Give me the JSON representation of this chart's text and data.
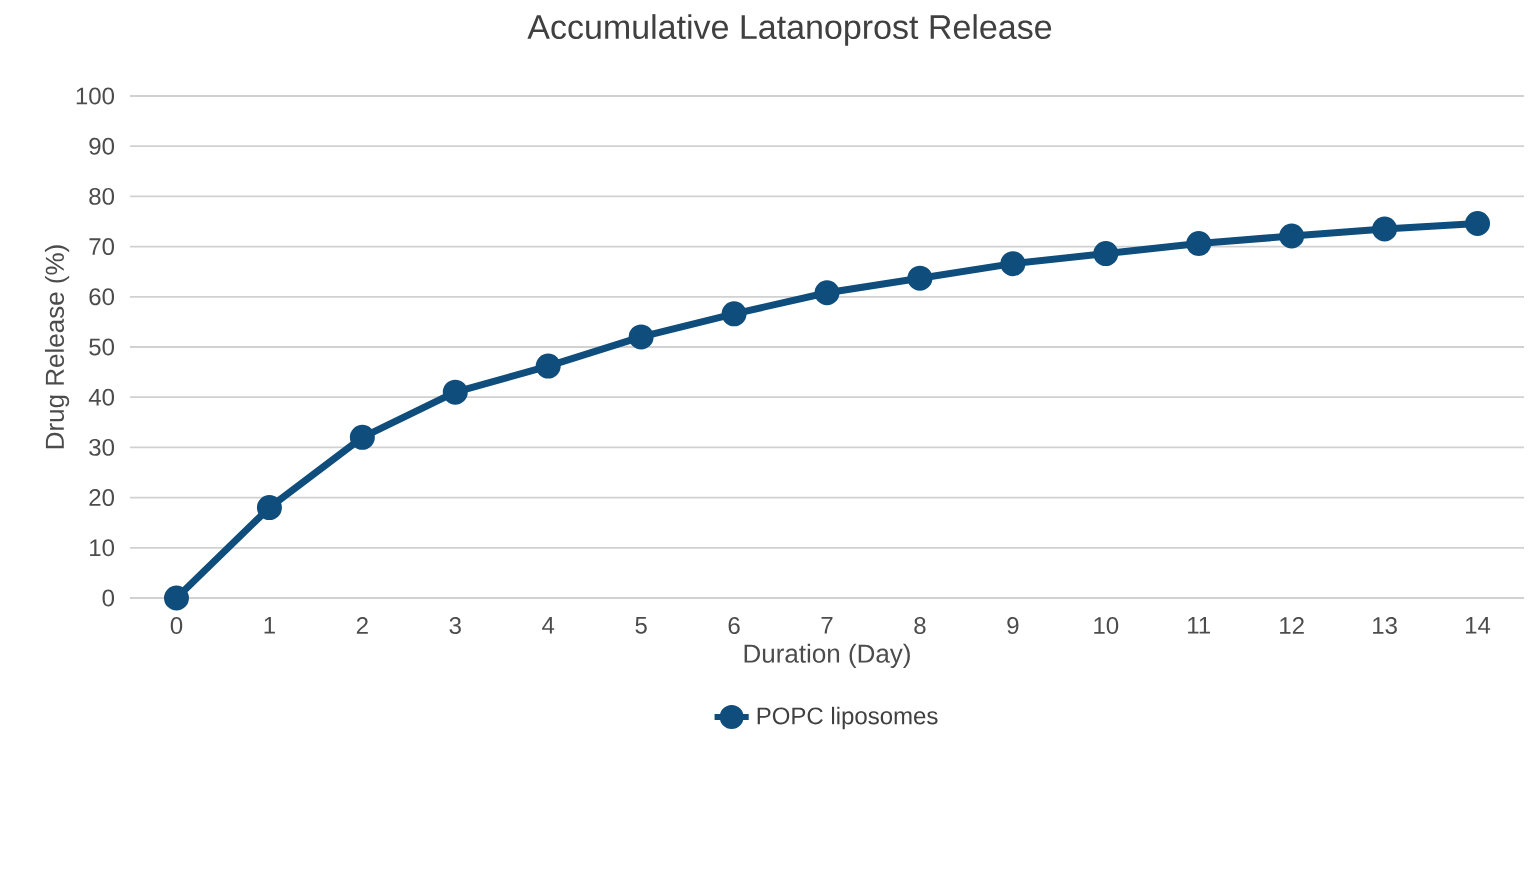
{
  "chart_data": {
    "type": "line",
    "title": "Accumulative Latanoprost Release",
    "xlabel": "Duration (Day)",
    "ylabel": "Drug Release (%)",
    "categories": [
      "0",
      "1",
      "2",
      "3",
      "4",
      "5",
      "6",
      "7",
      "8",
      "9",
      "10",
      "11",
      "12",
      "13",
      "14"
    ],
    "series": [
      {
        "name": "POPC liposomes",
        "color": "#0e4d7c",
        "values": [
          0,
          18,
          32,
          41,
          46.2,
          52,
          56.6,
          60.8,
          63.7,
          66.6,
          68.6,
          70.6,
          72.1,
          73.5,
          74.6
        ]
      }
    ],
    "ylim": [
      0,
      100
    ],
    "yticks": [
      0,
      10,
      20,
      30,
      40,
      50,
      60,
      70,
      80,
      90,
      100
    ],
    "grid": "y",
    "legend": "bottom",
    "marker": "circle",
    "line_style": "solid"
  }
}
